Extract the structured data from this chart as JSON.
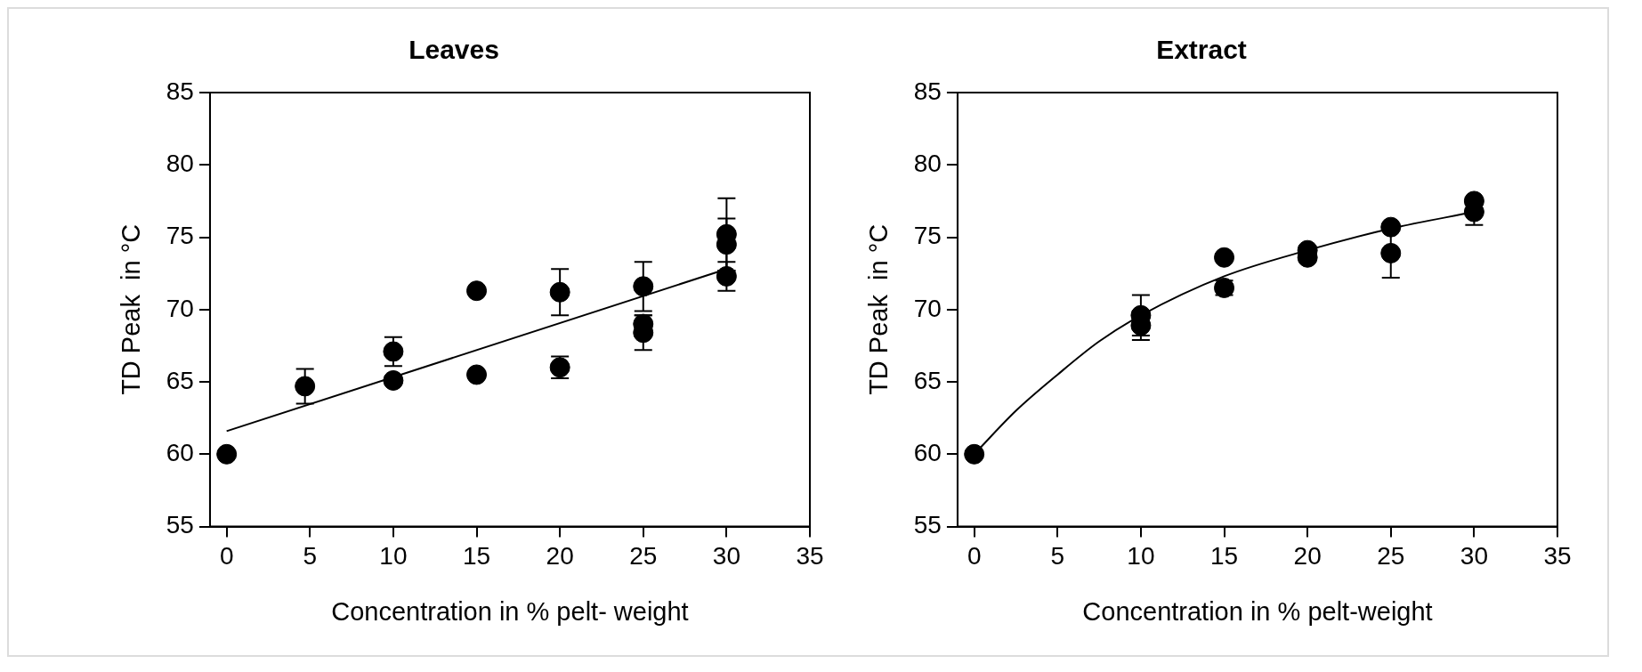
{
  "chart_data": [
    {
      "type": "scatter",
      "title": "Leaves",
      "xlabel": "Concentration in % pelt- weight",
      "ylabel": "TD Peak  in °C",
      "xlim": [
        -1,
        35
      ],
      "ylim": [
        55,
        85
      ],
      "xticks": [
        0,
        5,
        10,
        15,
        20,
        25,
        30,
        35
      ],
      "yticks": [
        55,
        60,
        65,
        70,
        75,
        80,
        85
      ],
      "grid": false,
      "legend": false,
      "series": [
        {
          "type": "scatter",
          "color": "#000000",
          "marker": "circle",
          "x": [
            0,
            4.7,
            10,
            10,
            15,
            15,
            20,
            20,
            25,
            25,
            25,
            30,
            30,
            30
          ],
          "values": [
            60,
            64.7,
            67.1,
            65.1,
            71.3,
            65.5,
            71.2,
            66.0,
            71.6,
            69.0,
            68.4,
            75.2,
            74.5,
            72.3
          ],
          "errors": [
            null,
            1.2,
            1.0,
            0.3,
            0.2,
            0.2,
            1.6,
            0.75,
            1.7,
            0.6,
            1.2,
            2.5,
            1.8,
            1.0
          ]
        },
        {
          "type": "line",
          "color": "#000000",
          "marker": "none",
          "x": [
            0,
            30
          ],
          "values": [
            61.6,
            72.8
          ]
        }
      ]
    },
    {
      "type": "scatter",
      "title": "Extract",
      "xlabel": "Concentration in % pelt-weight",
      "ylabel": "TD Peak  in °C",
      "xlim": [
        -1,
        35
      ],
      "ylim": [
        55,
        85
      ],
      "xticks": [
        0,
        5,
        10,
        15,
        20,
        25,
        30,
        35
      ],
      "yticks": [
        55,
        60,
        65,
        70,
        75,
        80,
        85
      ],
      "grid": false,
      "legend": false,
      "series": [
        {
          "type": "scatter",
          "color": "#000000",
          "marker": "circle",
          "x": [
            0,
            10,
            10,
            15,
            15,
            20,
            20,
            25,
            25,
            30,
            30
          ],
          "values": [
            60,
            69.6,
            68.9,
            73.6,
            71.5,
            74.1,
            73.6,
            75.7,
            73.9,
            77.5,
            76.75
          ],
          "errors": [
            null,
            1.4,
            1.0,
            0.2,
            0.5,
            0.3,
            0.3,
            0.2,
            1.7,
            0.2,
            0.9
          ]
        },
        {
          "type": "line",
          "color": "#000000",
          "marker": "none",
          "x": [
            0,
            2.5,
            5,
            7.5,
            10,
            15,
            20,
            25,
            30
          ],
          "values": [
            60,
            63.0,
            65.5,
            67.8,
            69.6,
            72.3,
            74.1,
            75.6,
            76.75
          ]
        }
      ]
    }
  ]
}
